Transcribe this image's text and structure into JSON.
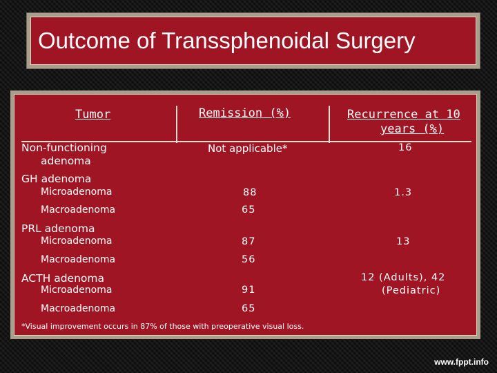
{
  "title": "Outcome of Transsphenoidal Surgery",
  "table": {
    "headers": {
      "tumor": "Tumor",
      "remission": "Remission (%)",
      "recurrence_line1": "Recurrence at 10",
      "recurrence_line2": "years (%)"
    },
    "nonfunctioning": {
      "label_line1": "Non-functioning",
      "label_line2": "adenoma",
      "remission": "Not applicable*",
      "recurrence": "16"
    },
    "gh": {
      "group": "GH adenoma",
      "micro_label": "Microadenoma",
      "micro_remission": "88",
      "recurrence": "1.3",
      "macro_label": "Macroadenoma",
      "macro_remission": "65"
    },
    "prl": {
      "group": "PRL adenoma",
      "micro_label": "Microadenoma",
      "micro_remission": "87",
      "recurrence": "13",
      "macro_label": "Macroadenoma",
      "macro_remission": "56"
    },
    "acth": {
      "group": "ACTH adenoma",
      "micro_label": "Microadenoma",
      "micro_remission": "91",
      "recurrence_line1": "12 (Adults), 42",
      "recurrence_line2": "(Pediatric)",
      "macro_label": "Macroadenoma",
      "macro_remission": "65"
    },
    "footnote": "*Visual improvement occurs in 87% of those with preoperative visual loss."
  },
  "footer_url": "www.fppt.info",
  "colors": {
    "slide_red": "#a01523",
    "frame_tan": "#a8a08c",
    "background": "#141414",
    "text": "#ffffff"
  }
}
